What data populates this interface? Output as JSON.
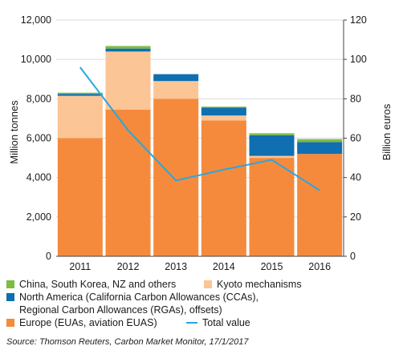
{
  "chart_data": {
    "type": "bar",
    "stacked": true,
    "categories": [
      "2011",
      "2012",
      "2013",
      "2014",
      "2015",
      "2016"
    ],
    "series": [
      {
        "name": "Europe (EUAs, aviation EUAS)",
        "color": "#f58a3c",
        "values": [
          6000,
          7450,
          8000,
          6900,
          5000,
          5200
        ]
      },
      {
        "name": "Kyoto mechanisms",
        "color": "#fbc595",
        "values": [
          2150,
          2950,
          900,
          250,
          100,
          0
        ]
      },
      {
        "name": "North America (California Carbon Allowances (CCAs), Regional Carbon Allowances (RGAs), offsets)",
        "color": "#0f6fb0",
        "values": [
          100,
          150,
          350,
          400,
          1050,
          600
        ]
      },
      {
        "name": "China, South Korea, NZ and others",
        "color": "#7dbd41",
        "values": [
          60,
          130,
          0,
          50,
          100,
          150
        ]
      }
    ],
    "line_series": {
      "name": "Total value",
      "color": "#2aa6e0",
      "axis": "right",
      "values": [
        96,
        64,
        38.5,
        44,
        49,
        33.5
      ]
    },
    "ylabel": "Million tonnes",
    "ylim": [
      0,
      12000
    ],
    "yticks": [
      "0",
      "2,000",
      "4,000",
      "6,000",
      "8,000",
      "10,000",
      "12,000"
    ],
    "y2label": "Billion euros",
    "y2lim": [
      0,
      120
    ],
    "y2ticks": [
      "0",
      "20",
      "40",
      "60",
      "80",
      "100",
      "120"
    ],
    "legend_position": "bottom"
  },
  "legend": {
    "china": "China, South Korea, NZ and others",
    "kyoto": "Kyoto mechanisms",
    "north_america_1": "North America (California Carbon Allowances (CCAs),",
    "north_america_2": "Regional Carbon Allowances (RGAs), offsets)",
    "europe": "Europe (EUAs, aviation EUAS)",
    "total": "Total value"
  },
  "source": "Source: Thomson Reuters, Carbon Market Monitor, 17/1/2017"
}
